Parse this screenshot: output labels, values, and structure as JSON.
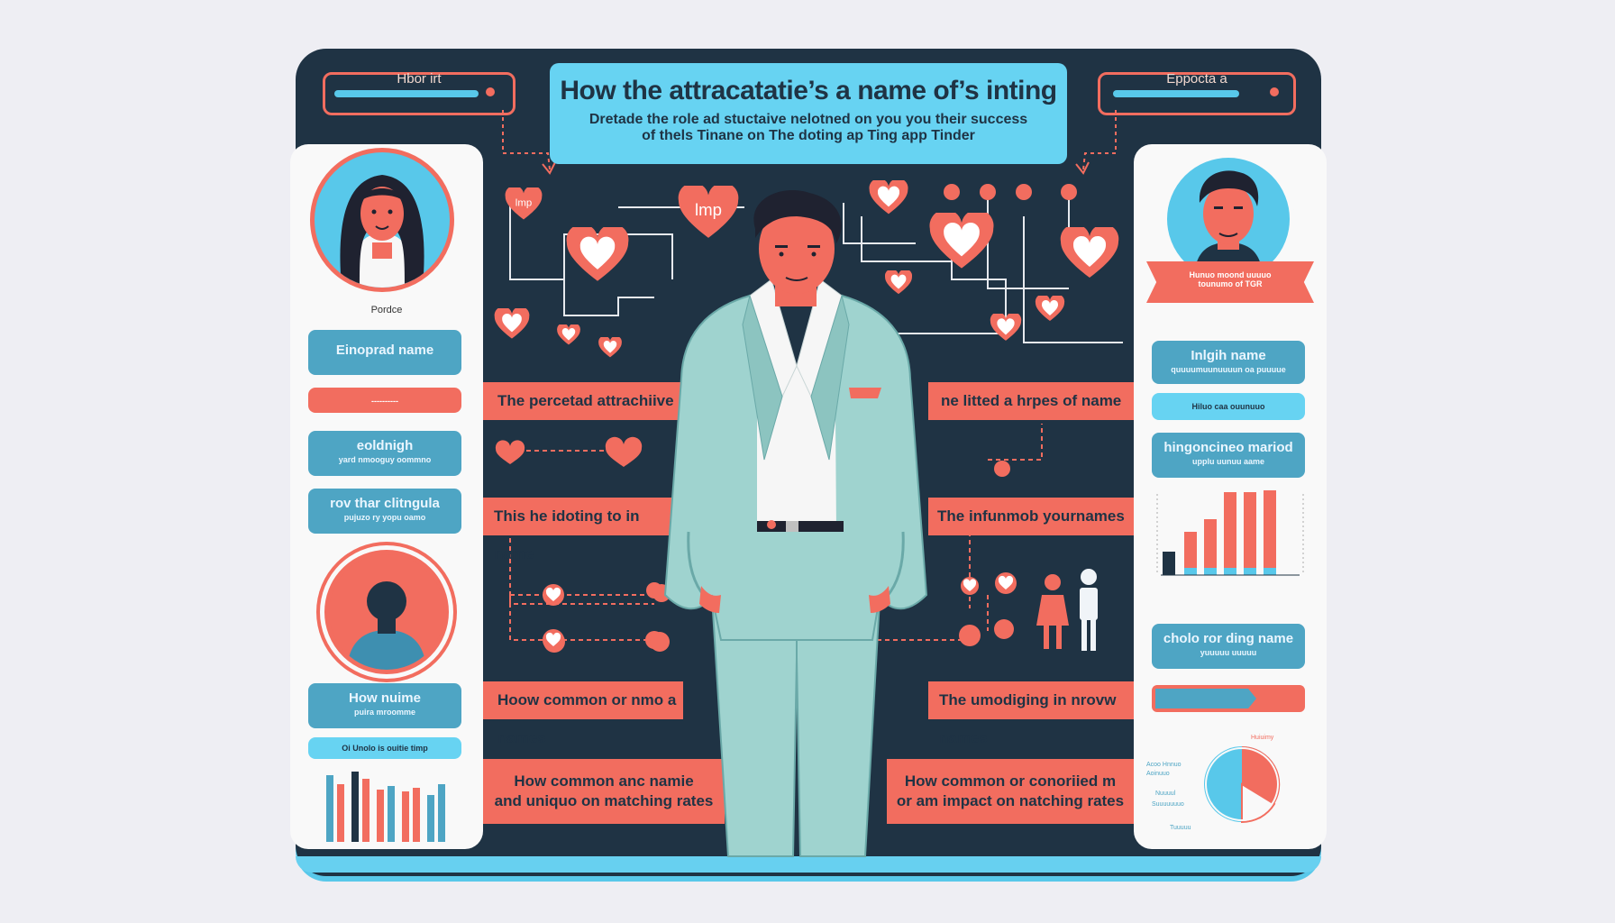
{
  "header": {
    "title": "How the attracatatie’s a name of’s inting",
    "subtitle_line1": "Dretade the role ad stuctaive nelotned on you you their success",
    "subtitle_line2": "of thels Tinane on The doting ap Ting app Tinder",
    "left_tab": "Hbor irt",
    "right_tab": "Eppocta a"
  },
  "left_panel": {
    "avatar_caption": "Pordce",
    "box1": "Einoprad name",
    "box2_small": "----------",
    "box3_title": "eoldnigh",
    "box3_sub": "yard nmooguy oommno",
    "box4_title": "rov thar clitngula",
    "box4_sub": "pujuzo ry yopu oamo",
    "box5_title": "How nuime",
    "box5_sub": "puira mroomme",
    "box6": "Oi Unolo is ouitie timp"
  },
  "right_panel": {
    "ribbon_line1": "Hunuo moond uuuuo",
    "ribbon_line2": "tounumo of TGR",
    "box1_title": "Inlgih name",
    "box1_sub": "quuuumuunuuuun oa puuuue",
    "box2": "Hiluo caa ouunuuo",
    "box3_title": "hingoncineo mariod",
    "box3_sub": "upplu uunuu aame",
    "box4_title": "cholo ror ding name",
    "box4_sub": "yuuuuu uuuuu",
    "pie_labels": [
      "Acoo Hnnuo",
      "Aoinuuo",
      "Nuuuul",
      "Suuuuuuuo",
      "Tuuuuu",
      "Huiuimy"
    ]
  },
  "center": {
    "band1_left": "The percetad attrachiive",
    "band1_right": "ne litted a hrpes of name",
    "band2_left": "This he idoting to in name",
    "band2_right": "The infunmob yournames",
    "band3_left": "Hoow common or nmo a names",
    "band3_right": "The umodiging in nrovw names",
    "band4_left_line1": "How common anc namie",
    "band4_left_line2": "and uniquo on matching rates",
    "band4_right_line1": "How common or conoriied m",
    "band4_right_line2": "or am impact on natching rates",
    "heart_tag1": "lmp",
    "heart_tag2": "lmp"
  },
  "colors": {
    "navy": "#1f3344",
    "coral": "#f26d5f",
    "cyan": "#67d3f2",
    "steel_blue": "#4ea5c4",
    "suit": "#9fd3cf"
  }
}
